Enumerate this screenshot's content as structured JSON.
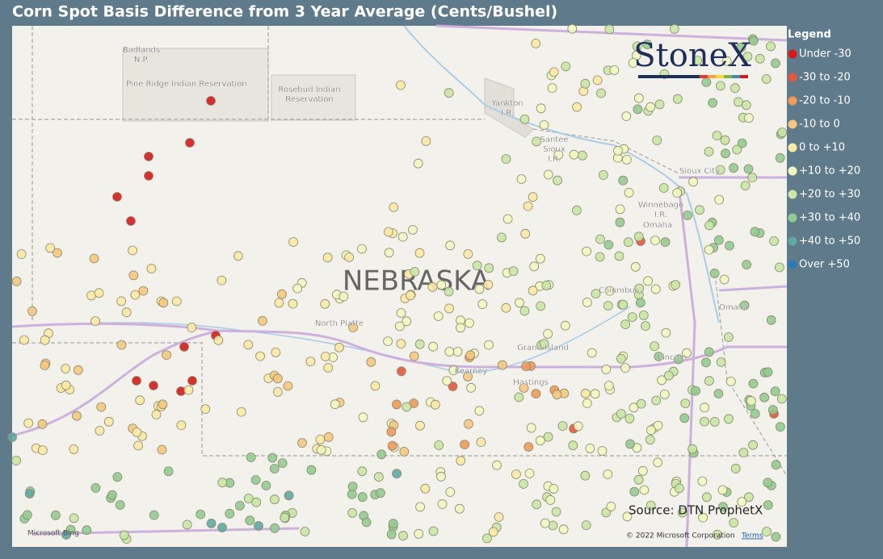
{
  "header": {
    "title": "Corn Spot Basis Difference from 3 Year Average (Cents/Bushel)"
  },
  "legend": {
    "title": "Legend",
    "items": [
      {
        "label": "Under -30",
        "color": "#d7191c"
      },
      {
        "label": "-30 to -20",
        "color": "#e4583b"
      },
      {
        "label": "-20 to -10",
        "color": "#f09a5b"
      },
      {
        "label": "-10 to 0",
        "color": "#f7c77f"
      },
      {
        "label": "0 to +10",
        "color": "#fde9a6"
      },
      {
        "label": "+10 to +20",
        "color": "#f2f7c2"
      },
      {
        "label": "+20 to +30",
        "color": "#c9e7a6"
      },
      {
        "label": "+30 to +40",
        "color": "#92cb90"
      },
      {
        "label": "+40 to +50",
        "color": "#5fa9a3"
      },
      {
        "label": "Over +50",
        "color": "#2c7bb6"
      }
    ]
  },
  "map": {
    "state_label": "NEBRASKA",
    "places": [
      {
        "lines": [
          "Badlands",
          "N.P."
        ]
      },
      {
        "lines": [
          "Pine Ridge Indian Reservation"
        ]
      },
      {
        "lines": [
          "Rosebud Indian",
          "Reservation"
        ]
      },
      {
        "lines": [
          "Yankton",
          "I.R."
        ]
      },
      {
        "lines": [
          "Santee",
          "Sioux",
          "I.R."
        ]
      },
      {
        "lines": [
          "Sioux City"
        ]
      },
      {
        "lines": [
          "Winnebago",
          "I.R."
        ]
      },
      {
        "lines": [
          "Omaha"
        ]
      },
      {
        "lines": [
          "Columbus"
        ]
      },
      {
        "lines": [
          "Omaha"
        ]
      },
      {
        "lines": [
          "North Platte"
        ]
      },
      {
        "lines": [
          "Grand Island"
        ]
      },
      {
        "lines": [
          "Kearney"
        ]
      },
      {
        "lines": [
          "Hastings"
        ]
      },
      {
        "lines": [
          "Lincoln"
        ]
      }
    ],
    "logo": "StoneX",
    "source": "Source: DTN ProphetX",
    "provider": "Microsoft Bing",
    "copyright": "© 2022 Microsoft Corporation",
    "terms": "Terms"
  }
}
